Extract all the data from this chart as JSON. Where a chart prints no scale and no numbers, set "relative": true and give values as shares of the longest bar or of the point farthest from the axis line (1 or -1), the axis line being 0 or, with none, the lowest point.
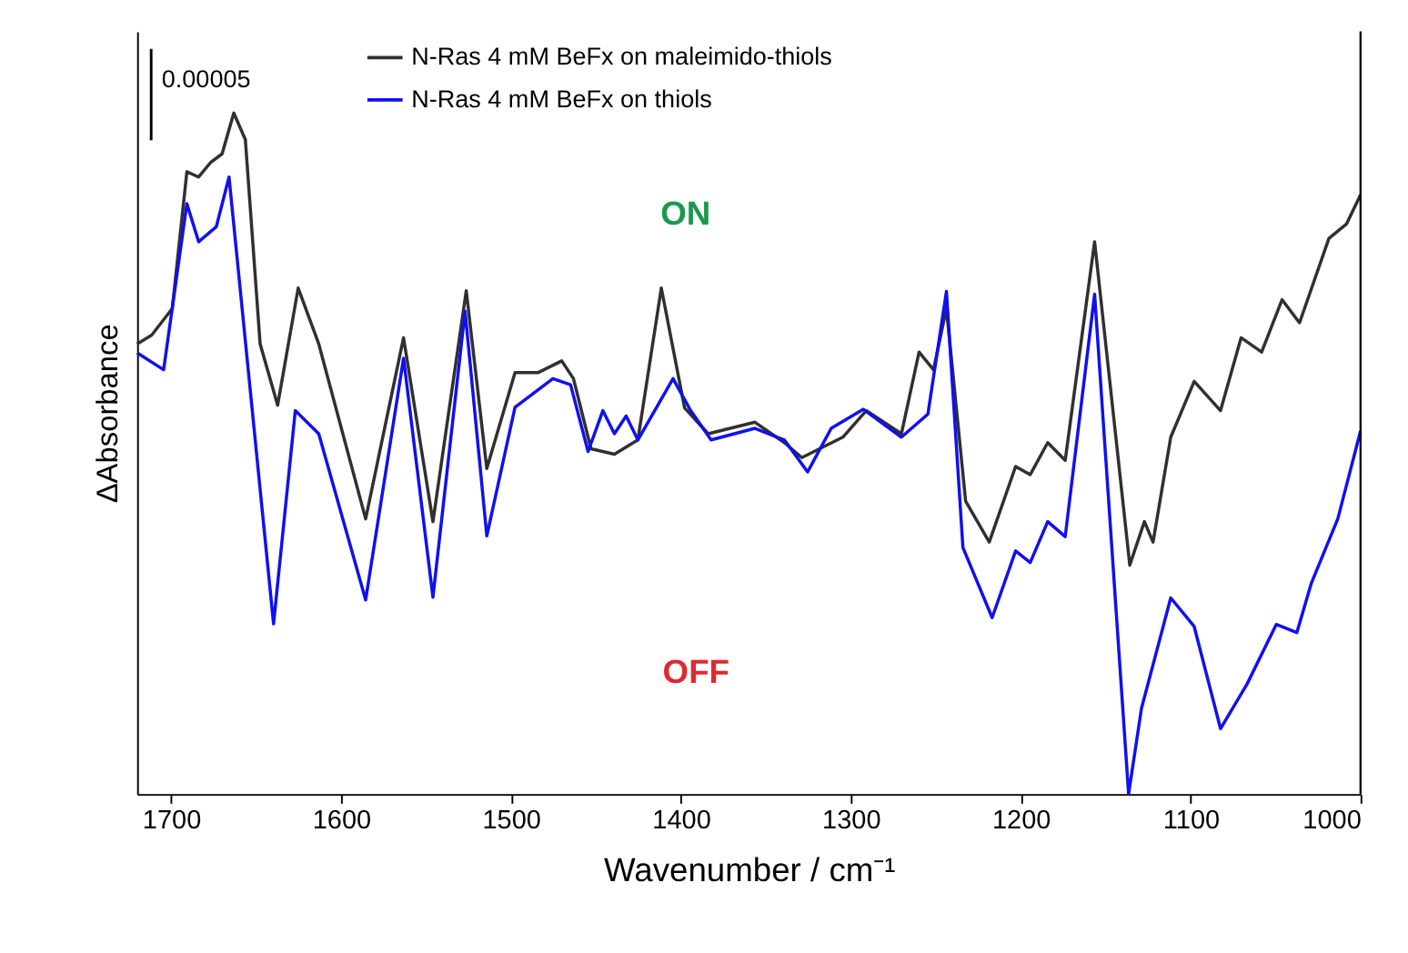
{
  "chart_data": {
    "type": "line",
    "relative": true,
    "xlabel": "Wavenumber / cm⁻¹",
    "ylabel": "ΔAbsorbance",
    "xlim": [
      1720,
      1000
    ],
    "xticks": [
      1700,
      1600,
      1500,
      1400,
      1300,
      1200,
      1100,
      1000
    ],
    "tick_labels": "x",
    "grid": false,
    "legend": "top",
    "line_style": "solid",
    "marker": "none",
    "annotations": [
      "0.00005",
      "ON",
      "OFF"
    ],
    "series": [
      {
        "name": "N-Ras 4 mM BeFx on maleimido-thiols",
        "color": "#303030",
        "x": [
          1720,
          1711.4,
          1699.3,
          1690.7,
          1683.8,
          1676.9,
          1670.0,
          1663.1,
          1656.3,
          1647.6,
          1637.3,
          1625.2,
          1613.1,
          1585.5,
          1563.2,
          1545.9,
          1526.3,
          1514.2,
          1497.6,
          1483.9,
          1470.1,
          1463.2,
          1452.9,
          1439.1,
          1425.3,
          1411.5,
          1397.8,
          1383.9,
          1356.4,
          1339.1,
          1328.8,
          1304.7,
          1290.9,
          1270.2,
          1259.8,
          1251.3,
          1243.7,
          1232.4,
          1218.5,
          1203.0,
          1194.4,
          1184.1,
          1173.8,
          1156.5,
          1135.8,
          1127.2,
          1122.1,
          1111.7,
          1097.9,
          1082.4,
          1070.3,
          1058.2,
          1046.2,
          1035.9,
          1018.6,
          1008.3,
          1000
        ],
        "values": [
          0.661,
          0.674,
          0.713,
          0.914,
          0.906,
          0.927,
          0.94,
          1.0,
          0.961,
          0.661,
          0.571,
          0.743,
          0.661,
          0.404,
          0.67,
          0.4,
          0.739,
          0.478,
          0.619,
          0.619,
          0.636,
          0.61,
          0.507,
          0.499,
          0.52,
          0.743,
          0.567,
          0.529,
          0.546,
          0.516,
          0.494,
          0.524,
          0.563,
          0.529,
          0.649,
          0.623,
          0.713,
          0.43,
          0.37,
          0.481,
          0.469,
          0.516,
          0.49,
          0.811,
          0.336,
          0.4,
          0.37,
          0.524,
          0.606,
          0.563,
          0.67,
          0.649,
          0.726,
          0.692,
          0.816,
          0.837,
          0.88
        ]
      },
      {
        "name": "N-Ras 4 mM BeFx on thiols",
        "color": "#1010f0",
        "x": [
          1720,
          1704.4,
          1690.7,
          1683.8,
          1673.4,
          1665.9,
          1649.3,
          1639.7,
          1626.9,
          1613.1,
          1585.5,
          1563.2,
          1545.9,
          1527.0,
          1514.2,
          1497.6,
          1475.3,
          1464.9,
          1454.6,
          1445.9,
          1439.1,
          1432.2,
          1425.3,
          1404.6,
          1394.2,
          1382.2,
          1356.4,
          1339.1,
          1325.4,
          1311.5,
          1292.6,
          1270.2,
          1254.6,
          1243.7,
          1234.0,
          1216.8,
          1203.0,
          1194.4,
          1184.1,
          1173.8,
          1156.5,
          1136.5,
          1128.9,
          1111.7,
          1097.9,
          1082.4,
          1066.9,
          1049.6,
          1037.5,
          1028.9,
          1013.4,
          1000
        ],
        "values": [
          0.648,
          0.623,
          0.867,
          0.811,
          0.833,
          0.906,
          0.49,
          0.25,
          0.563,
          0.529,
          0.285,
          0.64,
          0.289,
          0.709,
          0.379,
          0.568,
          0.61,
          0.601,
          0.503,
          0.563,
          0.529,
          0.555,
          0.52,
          0.61,
          0.563,
          0.52,
          0.537,
          0.52,
          0.473,
          0.537,
          0.565,
          0.524,
          0.558,
          0.738,
          0.362,
          0.259,
          0.357,
          0.34,
          0.4,
          0.378,
          0.734,
          0.0,
          0.126,
          0.288,
          0.246,
          0.096,
          0.161,
          0.249,
          0.237,
          0.31,
          0.404,
          0.533
        ]
      }
    ]
  }
}
